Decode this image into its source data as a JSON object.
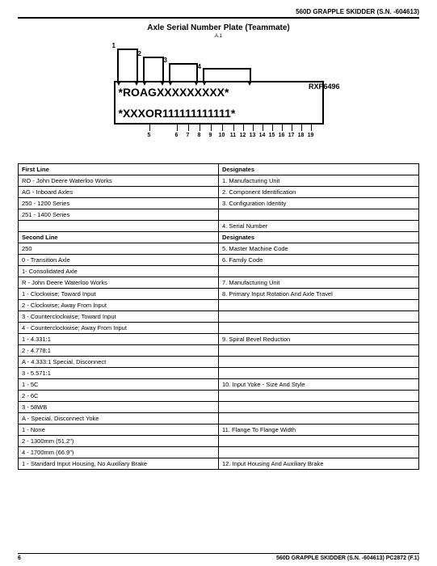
{
  "header": "560D GRAPPLE SKIDDER (S.N. -604613)",
  "title": "Axle Serial Number Plate (Teammate)",
  "subtitle": "A.1",
  "diagram": {
    "line1": "*ROAGXXXXXXXXX*",
    "line2": "*XXXOR111111111111*",
    "rxp": "RXP6496",
    "callouts": [
      "1",
      "2",
      "3",
      "4"
    ],
    "bottom_numbers": [
      "5",
      "6",
      "7",
      "8",
      "9",
      "10",
      "11",
      "12",
      "13",
      "14",
      "15",
      "16",
      "17",
      "18",
      "19"
    ]
  },
  "table": {
    "rows": [
      {
        "l": "First Line",
        "r": "Designates",
        "hdr": true
      },
      {
        "l": "RO - John Deere Waterloo Works",
        "r": "1. Manufacturing Unit"
      },
      {
        "l": "AG - Inboard Axles",
        "r": "2. Component Identification"
      },
      {
        "l": "250 - 1200 Series",
        "r": "3. Configuration Identity"
      },
      {
        "l": "251 - 1400 Series",
        "r": ""
      },
      {
        "l": "",
        "r": "4. Serial Number"
      },
      {
        "l": "Second Line",
        "r": "Designates",
        "hdr": true
      },
      {
        "l": "250",
        "r": "5. Master Machine Code"
      },
      {
        "l": "0 - Transition Axle",
        "r": "6. Family Code"
      },
      {
        "l": "1- Consolidated Axle",
        "r": ""
      },
      {
        "l": "R - John Deere Waterloo Works",
        "r": "7. Manufacturing Unit"
      },
      {
        "l": "1 - Clockwise; Toward Input",
        "r": "8. Primary Input Rotation And Axle Travel"
      },
      {
        "l": "2 - Clockwise; Away From Input",
        "r": ""
      },
      {
        "l": "3 - Counterclockwise; Toward Input",
        "r": ""
      },
      {
        "l": "4 - Counterclockwise; Away From Input",
        "r": ""
      },
      {
        "l": "1 - 4.331:1",
        "r": "9. Spiral Bevel Reduction"
      },
      {
        "l": "2 - 4.778:1",
        "r": ""
      },
      {
        "l": "A - 4.333:1 Special, Disconnect",
        "r": ""
      },
      {
        "l": "3 - 5.571:1",
        "r": ""
      },
      {
        "l": "1 - 5C",
        "r": "10. Input Yoke - Size And Style"
      },
      {
        "l": "2 - 6C",
        "r": ""
      },
      {
        "l": "3 - 58WB",
        "r": ""
      },
      {
        "l": "A - Special, Disconnect Yoke",
        "r": ""
      },
      {
        "l": "1 - None",
        "r": "11. Flange To Flange Width"
      },
      {
        "l": "2 - 1300mm (51.2\")",
        "r": ""
      },
      {
        "l": "4 - 1700mm (66.9\")",
        "r": ""
      },
      {
        "l": "1 - Standard Input Housing, No Auxiliary Brake",
        "r": "12. Input Housing And Auxiliary Brake"
      }
    ]
  },
  "footer": {
    "page": "6",
    "text": "560D GRAPPLE SKIDDER (S.N. -604613)   PC2872   (F.1)"
  }
}
